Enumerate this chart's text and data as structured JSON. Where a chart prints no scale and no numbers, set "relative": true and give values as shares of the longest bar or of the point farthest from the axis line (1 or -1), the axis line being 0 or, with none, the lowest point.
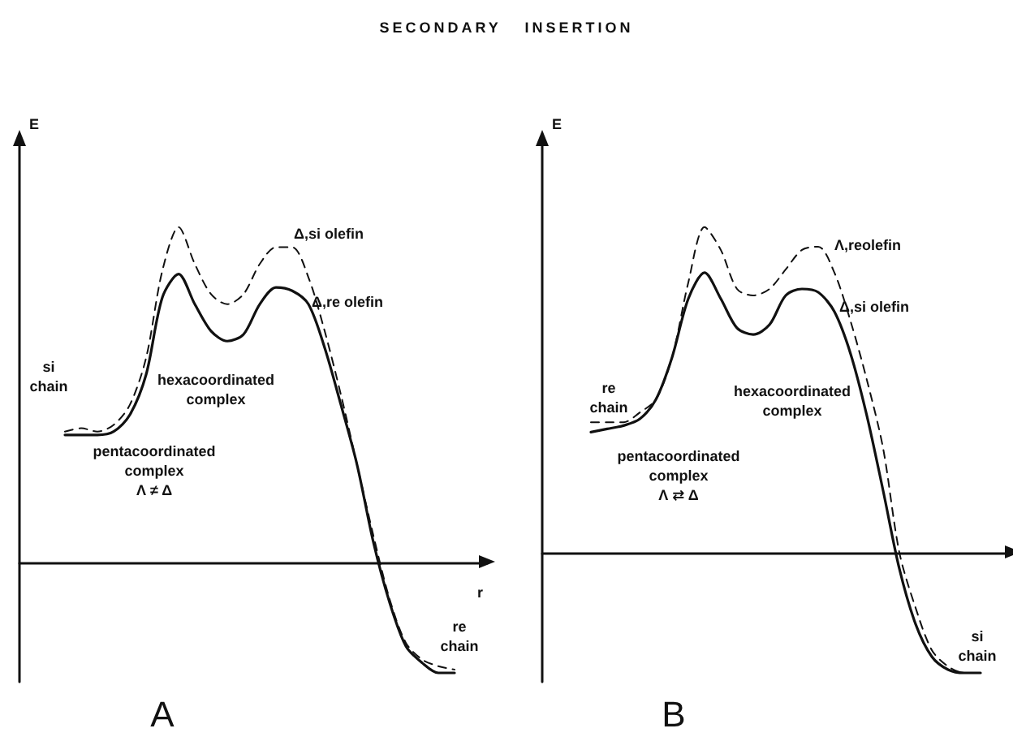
{
  "chart_data": [
    {
      "type": "line",
      "title": "SECONDARY INSERTION",
      "relative": true,
      "ylabel": "E",
      "xlabel": "r",
      "categories": [
        null,
        null,
        null,
        null,
        null,
        null,
        null,
        null,
        null,
        null,
        null,
        null,
        null,
        null,
        null,
        null,
        null,
        null,
        null,
        null,
        null,
        null,
        null,
        null,
        null
      ],
      "series": [
        {
          "color": "#111111",
          "line_style": "solid",
          "values": [
            0.38,
            0.38,
            0.38,
            0.39,
            0.44,
            0.56,
            0.79,
            0.86,
            0.77,
            0.69,
            0.66,
            0.68,
            0.77,
            0.82,
            0.81,
            0.77,
            0.64,
            0.47,
            0.29,
            0.06,
            -0.12,
            -0.25,
            -0.3,
            -0.33,
            -0.33
          ]
        },
        {
          "color": "#111111",
          "line_style": "dashed",
          "values": [
            0.39,
            0.4,
            0.39,
            0.41,
            0.47,
            0.61,
            0.87,
            1.0,
            0.89,
            0.8,
            0.77,
            0.8,
            0.89,
            0.94,
            0.94,
            0.85,
            0.69,
            0.5,
            0.29,
            0.08,
            -0.11,
            -0.24,
            -0.29,
            -0.31,
            -0.32
          ]
        }
      ],
      "annotations": [
        "Δ,si olefin",
        "Δ,re olefin",
        "si\nchain",
        "hexacoordinated\ncomplex",
        "pentacoordinated\ncomplex\nΛ ≠ Δ",
        "re\nchain",
        "A"
      ]
    },
    {
      "type": "line",
      "relative": true,
      "ylabel": "E",
      "categories": [
        null,
        null,
        null,
        null,
        null,
        null,
        null,
        null,
        null,
        null,
        null,
        null,
        null,
        null,
        null,
        null,
        null,
        null,
        null,
        null,
        null,
        null,
        null,
        null,
        null
      ],
      "series": [
        {
          "color": "#111111",
          "line_style": "solid",
          "values": [
            0.37,
            0.38,
            0.39,
            0.41,
            0.47,
            0.6,
            0.78,
            0.86,
            0.78,
            0.69,
            0.67,
            0.7,
            0.79,
            0.81,
            0.8,
            0.74,
            0.61,
            0.42,
            0.19,
            -0.05,
            -0.22,
            -0.32,
            -0.36,
            -0.37,
            -0.37
          ]
        },
        {
          "color": "#111111",
          "line_style": "dashed",
          "values": [
            0.4,
            0.4,
            0.4,
            0.43,
            0.47,
            0.6,
            0.83,
            1.0,
            0.93,
            0.81,
            0.79,
            0.81,
            0.87,
            0.93,
            0.94,
            0.86,
            0.71,
            0.53,
            0.32,
            0.0,
            -0.17,
            -0.3,
            -0.35,
            -0.37,
            -0.37
          ]
        }
      ],
      "annotations": [
        "Λ,reolefin",
        "Δ,si olefin",
        "re\nchain",
        "hexacoordinated\ncomplex",
        "pentacoordinated\ncomplex\nΛ ⇄ Δ",
        "si\nchain",
        "B"
      ]
    }
  ]
}
